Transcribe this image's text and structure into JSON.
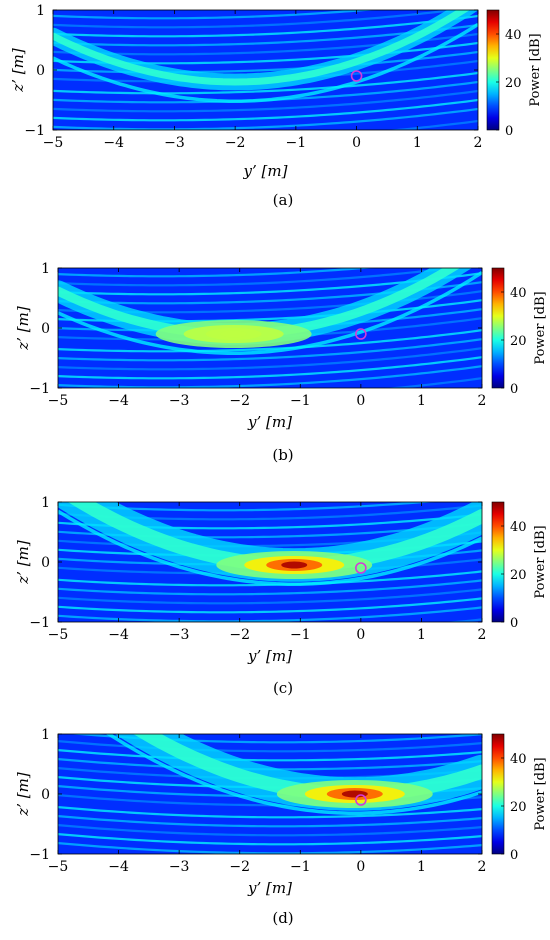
{
  "chart_data": [
    {
      "type": "heatmap",
      "label": "(a)",
      "xlabel": "y’ [m]",
      "ylabel": "z’ [m]",
      "xlim": [
        -5,
        2
      ],
      "ylim": [
        -1,
        1
      ],
      "xticks": [
        -5,
        -4,
        -3,
        -2,
        -1,
        0,
        1,
        2
      ],
      "yticks": [
        -1,
        0,
        1
      ],
      "colorbar": {
        "label": "Power [dB]",
        "range": [
          0,
          50
        ],
        "ticks": [
          0,
          20,
          40
        ]
      },
      "marker": {
        "shape": "circle",
        "y": 0.0,
        "z": -0.1
      },
      "peak_db": 20,
      "peak_location": {
        "y": -2.0,
        "z": -0.2
      }
    },
    {
      "type": "heatmap",
      "label": "(b)",
      "xlabel": "y’ [m]",
      "ylabel": "z’ [m]",
      "xlim": [
        -5,
        2
      ],
      "ylim": [
        -1,
        1
      ],
      "xticks": [
        -5,
        -4,
        -3,
        -2,
        -1,
        0,
        1,
        2
      ],
      "yticks": [
        -1,
        0,
        1
      ],
      "colorbar": {
        "label": "Power [dB]",
        "range": [
          0,
          50
        ],
        "ticks": [
          0,
          20,
          40
        ]
      },
      "marker": {
        "shape": "circle",
        "y": 0.0,
        "z": -0.1
      },
      "peak_db": 28,
      "peak_location": {
        "y": -2.1,
        "z": -0.1
      }
    },
    {
      "type": "heatmap",
      "label": "(c)",
      "xlabel": "y’ [m]",
      "ylabel": "z’ [m]",
      "xlim": [
        -5,
        2
      ],
      "ylim": [
        -1,
        1
      ],
      "xticks": [
        -5,
        -4,
        -3,
        -2,
        -1,
        0,
        1,
        2
      ],
      "yticks": [
        -1,
        0,
        1
      ],
      "colorbar": {
        "label": "Power [dB]",
        "range": [
          0,
          50
        ],
        "ticks": [
          0,
          20,
          40
        ]
      },
      "marker": {
        "shape": "circle",
        "y": 0.0,
        "z": -0.1
      },
      "peak_db": 48,
      "peak_location": {
        "y": -1.1,
        "z": -0.05
      }
    },
    {
      "type": "heatmap",
      "label": "(d)",
      "xlabel": "y’ [m]",
      "ylabel": "z’ [m]",
      "xlim": [
        -5,
        2
      ],
      "ylim": [
        -1,
        1
      ],
      "xticks": [
        -5,
        -4,
        -3,
        -2,
        -1,
        0,
        1,
        2
      ],
      "yticks": [
        -1,
        0,
        1
      ],
      "colorbar": {
        "label": "Power [dB]",
        "range": [
          0,
          50
        ],
        "ticks": [
          0,
          20,
          40
        ]
      },
      "marker": {
        "shape": "circle",
        "y": 0.0,
        "z": -0.1
      },
      "peak_db": 48,
      "peak_location": {
        "y": -0.1,
        "z": 0.0
      }
    }
  ]
}
